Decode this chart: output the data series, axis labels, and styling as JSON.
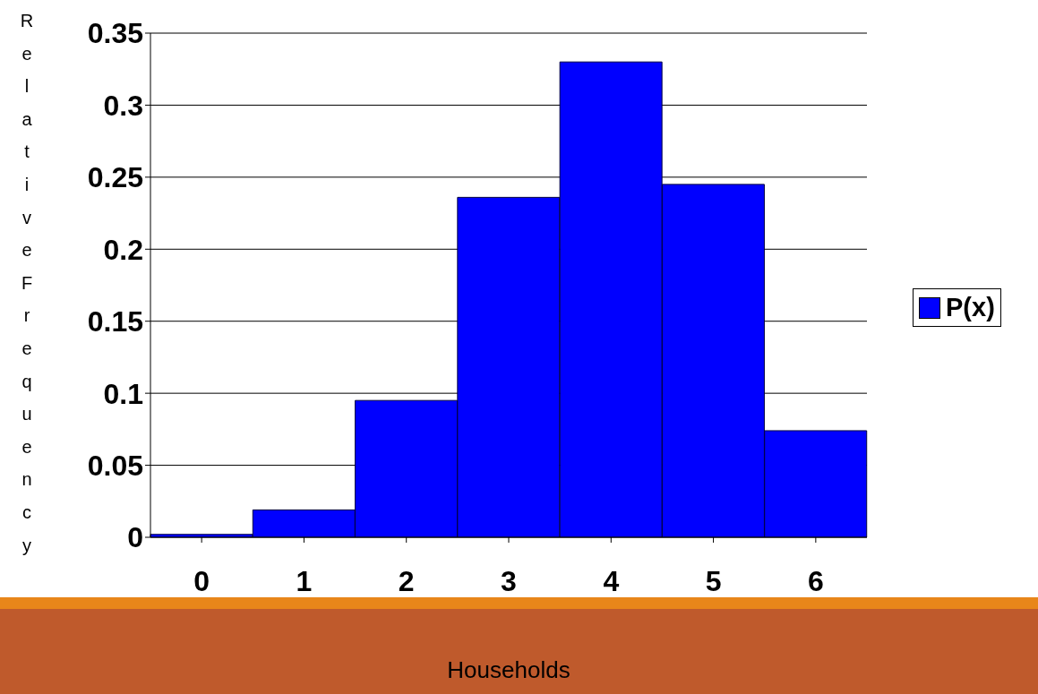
{
  "chart_data": {
    "type": "bar",
    "xlabel": "Households",
    "ylabel": "Relative Frequency",
    "categories": [
      "0",
      "1",
      "2",
      "3",
      "4",
      "5",
      "6"
    ],
    "series": [
      {
        "name": "P(x)",
        "color": "#0000ff",
        "values": [
          0.002,
          0.019,
          0.095,
          0.236,
          0.33,
          0.245,
          0.074
        ]
      }
    ],
    "ylim": [
      0,
      0.35
    ],
    "yticks": [
      0,
      0.05,
      0.1,
      0.15,
      0.2,
      0.25,
      0.3,
      0.35
    ],
    "grid": "y",
    "legend": "right"
  }
}
